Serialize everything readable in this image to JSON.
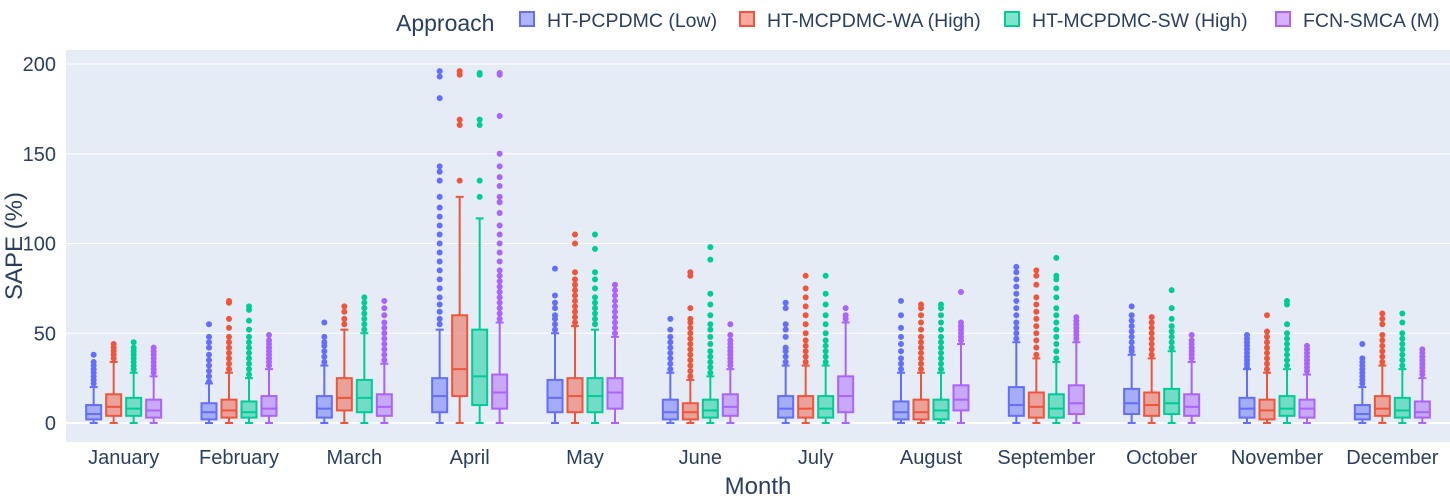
{
  "chart_data": {
    "type": "box",
    "title": "",
    "xlabel": "Month",
    "ylabel": "SAPE (%)",
    "ylim": [
      -11,
      211
    ],
    "yticks": [
      0,
      50,
      100,
      150,
      200
    ],
    "grid": true,
    "legend_title": "Approach",
    "legend_position": "top",
    "categories": [
      "January",
      "February",
      "March",
      "April",
      "May",
      "June",
      "July",
      "August",
      "September",
      "October",
      "November",
      "December"
    ],
    "series": [
      {
        "name": "HT-PCPDMC (Low)",
        "color": "#636efa",
        "boxes": [
          {
            "min": 0,
            "q1": 2,
            "median": 5,
            "q3": 10,
            "max": 20,
            "outliers": [
              22,
              24,
              26,
              28,
              30,
              32,
              34,
              38
            ]
          },
          {
            "min": 0,
            "q1": 2,
            "median": 6,
            "q3": 11,
            "max": 22,
            "outliers": [
              23,
              26,
              29,
              32,
              35,
              38,
              42,
              45,
              48,
              55
            ]
          },
          {
            "min": 0,
            "q1": 3,
            "median": 8,
            "q3": 15,
            "max": 32,
            "outliers": [
              34,
              37,
              40,
              43,
              45,
              48,
              56
            ]
          },
          {
            "min": 0,
            "q1": 6,
            "median": 15,
            "q3": 25,
            "max": 52,
            "outliers": [
              55,
              58,
              62,
              66,
              70,
              75,
              80,
              85,
              90,
              95,
              100,
              105,
              110,
              115,
              120,
              126,
              135,
              140,
              143,
              181,
              193,
              196
            ]
          },
          {
            "min": 0,
            "q1": 6,
            "median": 14,
            "q3": 24,
            "max": 50,
            "outliers": [
              52,
              55,
              58,
              60,
              64,
              67,
              71,
              86
            ]
          },
          {
            "min": 0,
            "q1": 2,
            "median": 6,
            "q3": 13,
            "max": 28,
            "outliers": [
              30,
              33,
              36,
              39,
              42,
              45,
              48,
              52,
              58
            ]
          },
          {
            "min": 0,
            "q1": 3,
            "median": 8,
            "q3": 15,
            "max": 32,
            "outliers": [
              34,
              37,
              40,
              42,
              48,
              52,
              55,
              64,
              67
            ]
          },
          {
            "min": 0,
            "q1": 2,
            "median": 6,
            "q3": 12,
            "max": 28,
            "outliers": [
              30,
              33,
              36,
              40,
              44,
              48,
              53,
              60,
              68
            ]
          },
          {
            "min": 0,
            "q1": 4,
            "median": 10,
            "q3": 20,
            "max": 45,
            "outliers": [
              47,
              50,
              53,
              56,
              60,
              64,
              68,
              72,
              76,
              80,
              84,
              87
            ]
          },
          {
            "min": 0,
            "q1": 5,
            "median": 11,
            "q3": 19,
            "max": 38,
            "outliers": [
              40,
              42,
              45,
              48,
              51,
              54,
              57,
              60,
              65
            ]
          },
          {
            "min": 0,
            "q1": 3,
            "median": 8,
            "q3": 14,
            "max": 30,
            "outliers": [
              31,
              33,
              35,
              37,
              39,
              41,
              43,
              45,
              47,
              49
            ]
          },
          {
            "min": 0,
            "q1": 2,
            "median": 5,
            "q3": 10,
            "max": 20,
            "outliers": [
              22,
              24,
              26,
              28,
              30,
              32,
              34,
              36,
              44
            ]
          }
        ]
      },
      {
        "name": "HT-MCPDMC-WA (High)",
        "color": "#ef553b",
        "boxes": [
          {
            "min": 0,
            "q1": 4,
            "median": 9,
            "q3": 16,
            "max": 34,
            "outliers": [
              36,
              38,
              40,
              42,
              44
            ]
          },
          {
            "min": 0,
            "q1": 3,
            "median": 7,
            "q3": 13,
            "max": 28,
            "outliers": [
              30,
              33,
              36,
              39,
              42,
              45,
              48,
              53,
              58,
              67,
              68
            ]
          },
          {
            "min": 0,
            "q1": 7,
            "median": 14,
            "q3": 25,
            "max": 52,
            "outliers": [
              55,
              58,
              62,
              65
            ]
          },
          {
            "min": 0,
            "q1": 15,
            "median": 30,
            "q3": 60,
            "max": 126,
            "outliers": [
              135,
              166,
              169,
              194,
              196
            ]
          },
          {
            "min": 0,
            "q1": 6,
            "median": 15,
            "q3": 25,
            "max": 54,
            "outliers": [
              56,
              59,
              62,
              65,
              68,
              71,
              74,
              77,
              80,
              84,
              100,
              105
            ]
          },
          {
            "min": 0,
            "q1": 2,
            "median": 6,
            "q3": 11,
            "max": 24,
            "outliers": [
              26,
              29,
              32,
              35,
              38,
              41,
              44,
              47,
              50,
              53,
              56,
              58,
              64,
              82,
              84
            ]
          },
          {
            "min": 0,
            "q1": 3,
            "median": 8,
            "q3": 15,
            "max": 32,
            "outliers": [
              34,
              37,
              40,
              43,
              46,
              50,
              55,
              60,
              65,
              70,
              75,
              82
            ]
          },
          {
            "min": 0,
            "q1": 2,
            "median": 6,
            "q3": 13,
            "max": 28,
            "outliers": [
              30,
              33,
              36,
              39,
              42,
              45,
              48,
              52,
              56,
              60,
              64,
              66
            ]
          },
          {
            "min": 0,
            "q1": 3,
            "median": 9,
            "q3": 17,
            "max": 36,
            "outliers": [
              38,
              42,
              46,
              50,
              54,
              58,
              62,
              66,
              70,
              77,
              82,
              85
            ]
          },
          {
            "min": 0,
            "q1": 4,
            "median": 10,
            "q3": 17,
            "max": 36,
            "outliers": [
              38,
              41,
              44,
              47,
              50,
              53,
              56,
              59
            ]
          },
          {
            "min": 0,
            "q1": 2,
            "median": 7,
            "q3": 13,
            "max": 28,
            "outliers": [
              30,
              33,
              36,
              39,
              42,
              45,
              48,
              51,
              60
            ]
          },
          {
            "min": 0,
            "q1": 4,
            "median": 8,
            "q3": 15,
            "max": 32,
            "outliers": [
              34,
              37,
              40,
              43,
              46,
              49,
              55,
              58,
              61
            ]
          }
        ]
      },
      {
        "name": "HT-MCPDMC-SW (High)",
        "color": "#00cc96",
        "boxes": [
          {
            "min": 0,
            "q1": 4,
            "median": 8,
            "q3": 14,
            "max": 28,
            "outliers": [
              30,
              32,
              34,
              36,
              38,
              40,
              42,
              45
            ]
          },
          {
            "min": 0,
            "q1": 3,
            "median": 6,
            "q3": 12,
            "max": 25,
            "outliers": [
              27,
              30,
              33,
              36,
              39,
              42,
              45,
              48,
              52,
              57,
              63,
              65
            ]
          },
          {
            "min": 0,
            "q1": 6,
            "median": 14,
            "q3": 24,
            "max": 50,
            "outliers": [
              52,
              55,
              58,
              61,
              64,
              67,
              70
            ]
          },
          {
            "min": 0,
            "q1": 10,
            "median": 26,
            "q3": 52,
            "max": 114,
            "outliers": [
              126,
              135,
              166,
              169,
              194,
              195
            ]
          },
          {
            "min": 0,
            "q1": 6,
            "median": 15,
            "q3": 25,
            "max": 52,
            "outliers": [
              55,
              58,
              61,
              64,
              67,
              70,
              75,
              80,
              84,
              97,
              105
            ]
          },
          {
            "min": 0,
            "q1": 3,
            "median": 7,
            "q3": 13,
            "max": 26,
            "outliers": [
              28,
              31,
              34,
              37,
              40,
              44,
              48,
              52,
              55,
              60,
              66,
              72,
              91,
              98
            ]
          },
          {
            "min": 0,
            "q1": 3,
            "median": 8,
            "q3": 15,
            "max": 32,
            "outliers": [
              34,
              37,
              40,
              43,
              46,
              50,
              55,
              60,
              66,
              72,
              82
            ]
          },
          {
            "min": 0,
            "q1": 2,
            "median": 7,
            "q3": 13,
            "max": 28,
            "outliers": [
              30,
              33,
              36,
              39,
              42,
              45,
              48,
              52,
              56,
              60,
              64,
              66
            ]
          },
          {
            "min": 0,
            "q1": 3,
            "median": 8,
            "q3": 16,
            "max": 34,
            "outliers": [
              36,
              40,
              44,
              48,
              52,
              56,
              60,
              64,
              70,
              75,
              80,
              82,
              92
            ]
          },
          {
            "min": 0,
            "q1": 5,
            "median": 11,
            "q3": 19,
            "max": 40,
            "outliers": [
              42,
              45,
              48,
              51,
              54,
              58,
              64,
              74
            ]
          },
          {
            "min": 0,
            "q1": 4,
            "median": 8,
            "q3": 15,
            "max": 30,
            "outliers": [
              32,
              35,
              38,
              41,
              44,
              47,
              50,
              55,
              66,
              68
            ]
          },
          {
            "min": 0,
            "q1": 3,
            "median": 7,
            "q3": 14,
            "max": 30,
            "outliers": [
              32,
              35,
              38,
              41,
              44,
              47,
              50,
              56,
              61
            ]
          }
        ]
      },
      {
        "name": "FCN-SMCA (M)",
        "color": "#ab63fa",
        "boxes": [
          {
            "min": 0,
            "q1": 3,
            "median": 7,
            "q3": 13,
            "max": 26,
            "outliers": [
              28,
              30,
              32,
              34,
              36,
              38,
              40,
              42
            ]
          },
          {
            "min": 0,
            "q1": 4,
            "median": 8,
            "q3": 15,
            "max": 30,
            "outliers": [
              32,
              34,
              36,
              38,
              40,
              42,
              44,
              46,
              49
            ]
          },
          {
            "min": 0,
            "q1": 4,
            "median": 9,
            "q3": 16,
            "max": 33,
            "outliers": [
              35,
              38,
              41,
              44,
              47,
              50,
              53,
              56,
              60,
              64,
              68
            ]
          },
          {
            "min": 0,
            "q1": 8,
            "median": 17,
            "q3": 27,
            "max": 56,
            "outliers": [
              58,
              61,
              64,
              67,
              70,
              73,
              76,
              79,
              82,
              85,
              90,
              95,
              100,
              105,
              110,
              117,
              123,
              126,
              132,
              137,
              143,
              150,
              171,
              194,
              195
            ]
          },
          {
            "min": 0,
            "q1": 8,
            "median": 17,
            "q3": 25,
            "max": 48,
            "outliers": [
              50,
              53,
              56,
              59,
              62,
              65,
              68,
              71,
              74,
              77
            ]
          },
          {
            "min": 0,
            "q1": 4,
            "median": 9,
            "q3": 16,
            "max": 30,
            "outliers": [
              32,
              34,
              36,
              38,
              40,
              42,
              44,
              46,
              49,
              55
            ]
          },
          {
            "min": 0,
            "q1": 6,
            "median": 15,
            "q3": 26,
            "max": 56,
            "outliers": [
              58,
              60,
              64
            ]
          },
          {
            "min": 0,
            "q1": 7,
            "median": 13,
            "q3": 21,
            "max": 44,
            "outliers": [
              46,
              48,
              50,
              52,
              54,
              56,
              73
            ]
          },
          {
            "min": 0,
            "q1": 5,
            "median": 11,
            "q3": 21,
            "max": 45,
            "outliers": [
              47,
              49,
              51,
              53,
              55,
              57,
              59
            ]
          },
          {
            "min": 0,
            "q1": 4,
            "median": 9,
            "q3": 16,
            "max": 34,
            "outliers": [
              36,
              38,
              40,
              42,
              44,
              46,
              49
            ]
          },
          {
            "min": 0,
            "q1": 3,
            "median": 8,
            "q3": 13,
            "max": 27,
            "outliers": [
              29,
              31,
              33,
              35,
              37,
              39,
              41,
              43
            ]
          },
          {
            "min": 0,
            "q1": 3,
            "median": 6,
            "q3": 12,
            "max": 25,
            "outliers": [
              27,
              29,
              31,
              33,
              35,
              37,
              39,
              41
            ]
          }
        ]
      }
    ]
  }
}
